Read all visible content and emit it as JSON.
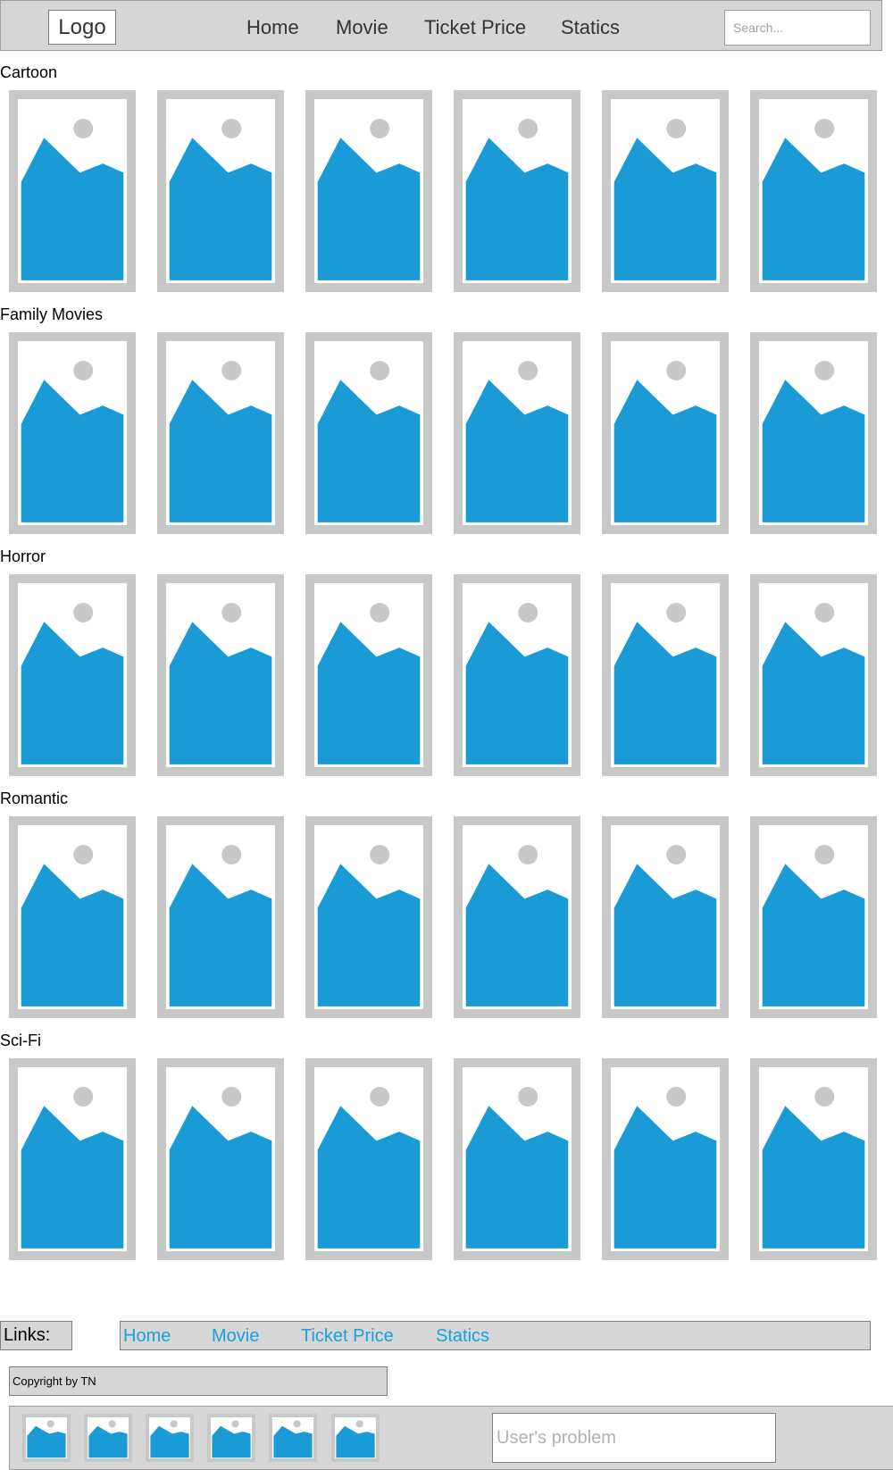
{
  "header": {
    "logo_label": "Logo",
    "nav": [
      {
        "label": "Home"
      },
      {
        "label": "Movie"
      },
      {
        "label": "Ticket Price"
      },
      {
        "label": "Statics"
      }
    ],
    "search": {
      "placeholder": "Search...",
      "value": ""
    }
  },
  "categories": [
    {
      "label": "Cartoon",
      "posters": 6
    },
    {
      "label": "Family Movies",
      "posters": 6
    },
    {
      "label": "Horror",
      "posters": 6
    },
    {
      "label": "Romantic",
      "posters": 6
    },
    {
      "label": "Sci-Fi",
      "posters": 6
    }
  ],
  "poster": {
    "icon": "image-placeholder-icon",
    "colors": {
      "frame": "#c8c8c8",
      "paper": "#ffffff",
      "mountain": "#1a9bd6",
      "sun": "#c8c8c8"
    }
  },
  "footer": {
    "links_label": "Links:",
    "links": [
      {
        "label": "Home"
      },
      {
        "label": "Movie"
      },
      {
        "label": "Ticket Price"
      },
      {
        "label": "Statics"
      }
    ],
    "link_color": "#1aa0e0",
    "copyright": "Copyright by TN"
  },
  "bottom_bar": {
    "thumbnail_count": 6,
    "problem_input": {
      "placeholder": "User's problem",
      "value": ""
    }
  }
}
